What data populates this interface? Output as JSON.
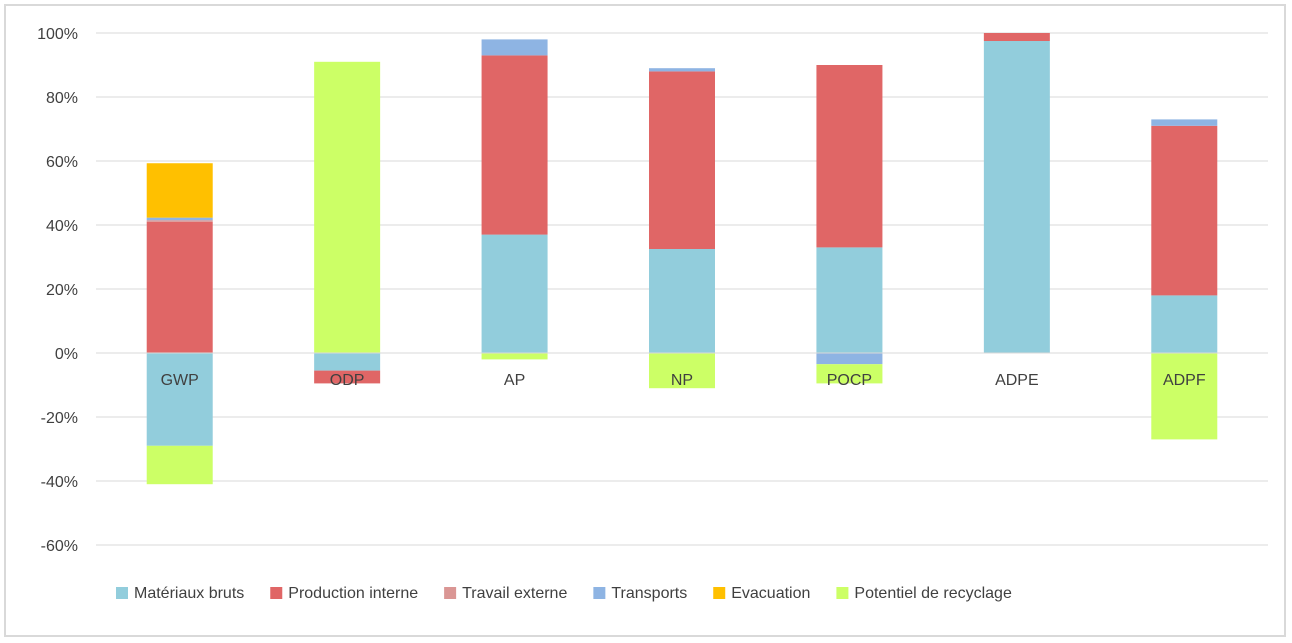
{
  "chart_data": {
    "type": "bar",
    "stacked": true,
    "title": "",
    "xlabel": "",
    "ylabel": "",
    "ylim": [
      -60,
      100
    ],
    "y_ticks": [
      -60,
      -40,
      -20,
      0,
      20,
      40,
      60,
      80,
      100
    ],
    "y_tick_labels": [
      "-60%",
      "-40%",
      "-20%",
      "0%",
      "20%",
      "40%",
      "60%",
      "80%",
      "100%"
    ],
    "grid": true,
    "legend_position": "bottom",
    "categories": [
      "GWP",
      "ODP",
      "AP",
      "NP",
      "POCP",
      "ADPE",
      "ADPF"
    ],
    "series": [
      {
        "name": "Matériaux bruts",
        "color": "#92cddc",
        "values": [
          -29,
          -5.5,
          37,
          32.5,
          33,
          97.5,
          18
        ]
      },
      {
        "name": "Production interne",
        "color": "#e06666",
        "values": [
          41,
          -4,
          56,
          55.5,
          57,
          2.5,
          53
        ]
      },
      {
        "name": "Travail externe",
        "color": "#da9694",
        "values": [
          0.5,
          0,
          0,
          0,
          0,
          0,
          0
        ]
      },
      {
        "name": "Transports",
        "color": "#8eb4e3",
        "values": [
          0.8,
          0,
          5,
          1,
          -3.5,
          0,
          2
        ]
      },
      {
        "name": "Evacuation",
        "color": "#ffc000",
        "values": [
          17,
          0,
          0,
          0,
          0,
          0,
          0
        ]
      },
      {
        "name": "Potentiel de recyclage",
        "color": "#ccff66",
        "values": [
          -12,
          91,
          -2,
          -11,
          -6,
          0,
          -27
        ]
      }
    ]
  }
}
